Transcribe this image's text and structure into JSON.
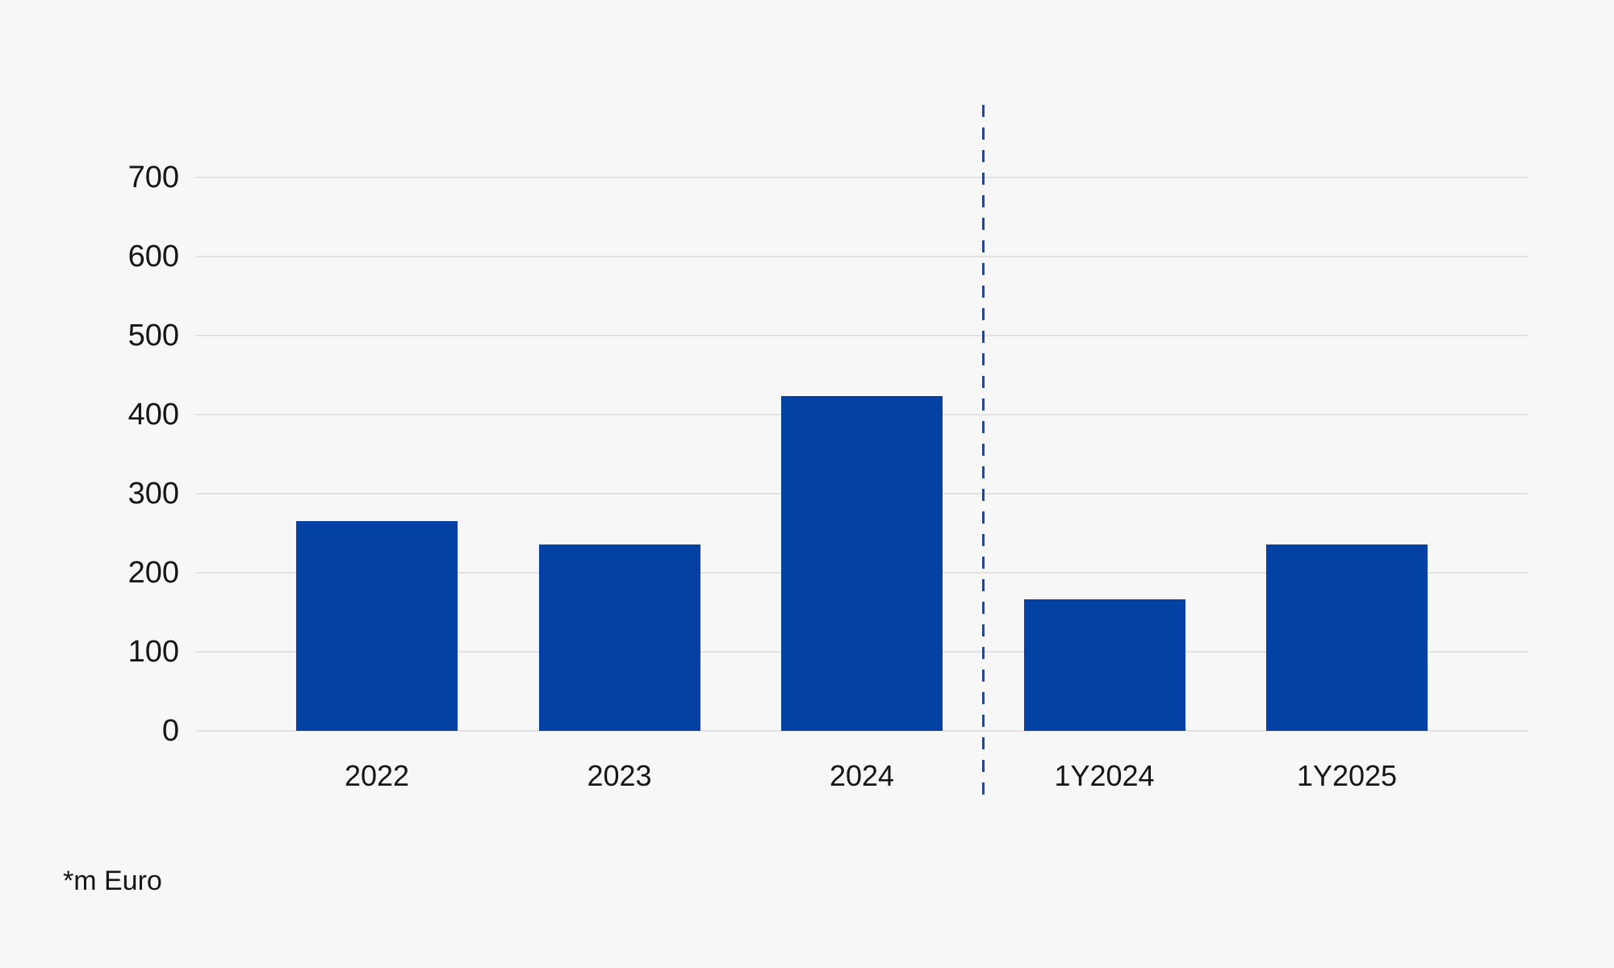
{
  "chart_data": {
    "type": "bar",
    "categories": [
      "2022",
      "2023",
      "2024",
      "1Y2024",
      "1Y2025"
    ],
    "values": [
      265,
      236,
      423,
      166,
      236
    ],
    "title": "",
    "xlabel": "",
    "ylabel": "",
    "y_ticks": [
      0,
      100,
      200,
      300,
      400,
      500,
      600,
      700
    ],
    "ylim": [
      0,
      750
    ],
    "grid": true,
    "legend_position": "none",
    "colors": {
      "bar": "#0341A5",
      "divider_dash": "#1148BE",
      "gridline": "#E2E2E4",
      "background": "#F7F7F8",
      "text": "#161616"
    },
    "divider": {
      "style": "dashed-vertical",
      "between": [
        "2024",
        "1Y2024"
      ]
    }
  },
  "footnote": "*m Euro"
}
